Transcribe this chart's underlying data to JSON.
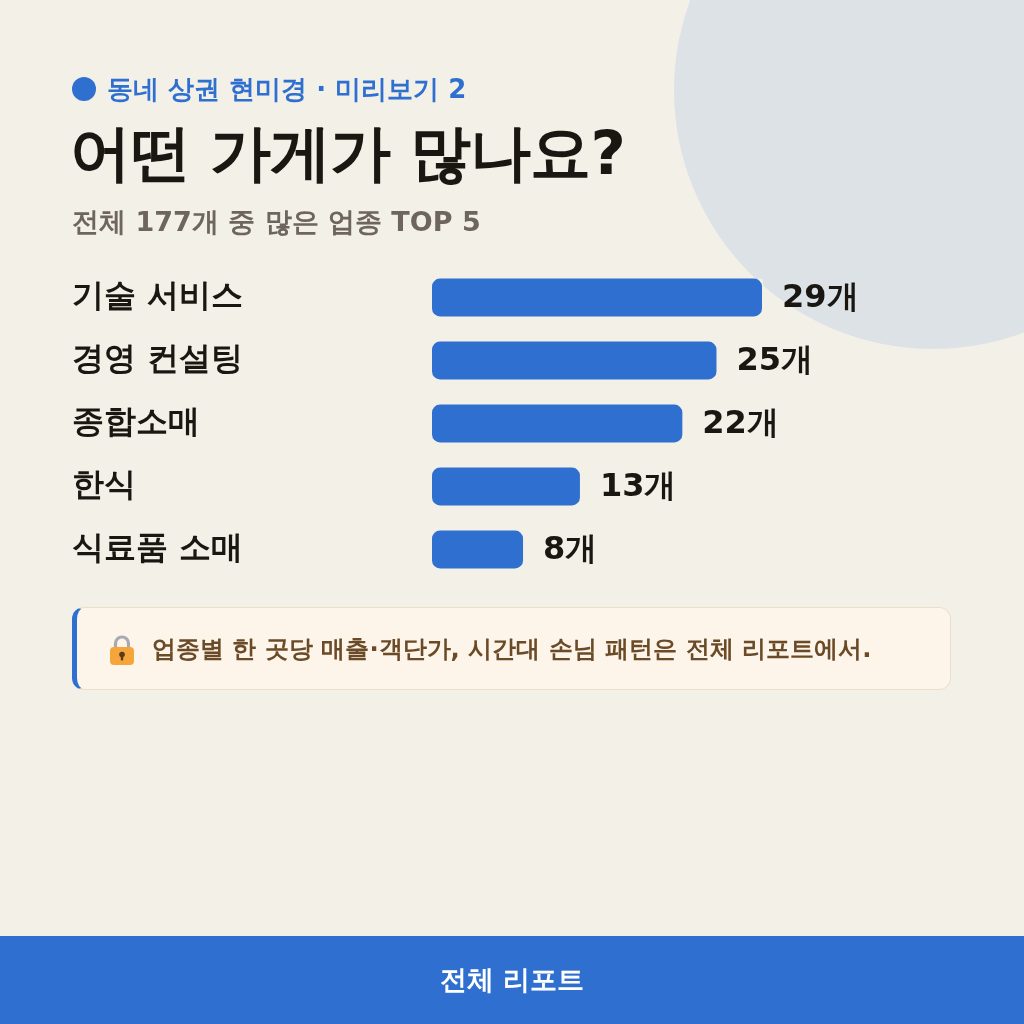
{
  "chart_data": {
    "type": "bar",
    "orientation": "horizontal",
    "title": "어떤 가게가 많나요?",
    "subtitle": "전체 177개 중 많은 업종 TOP 5",
    "categories": [
      "기술 서비스",
      "경영 컨설팅",
      "종합소매",
      "한식",
      "식료품 소매"
    ],
    "values": [
      29,
      25,
      22,
      13,
      8
    ],
    "color": "#2f6fd0",
    "value_labels": [
      "29개",
      "25개",
      "22개",
      "13개",
      "8개"
    ],
    "tick_labels": "y",
    "annotations": [
      "동네 상권 현미경 · 미리보기 2",
      "업종별 한 곳당 매출·객단가, 시간대 손님 패턴은 전체 리포트에서.",
      "전체 리포트"
    ]
  }
}
